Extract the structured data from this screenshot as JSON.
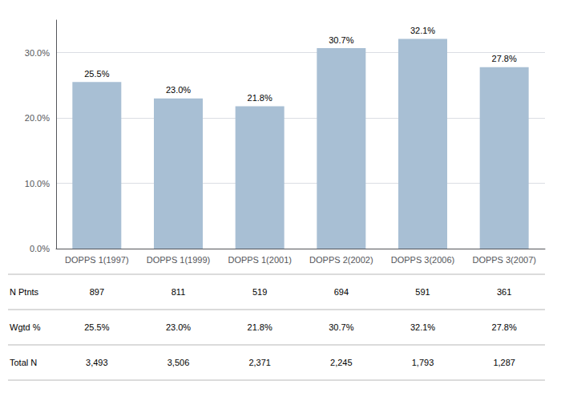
{
  "chart_data": {
    "type": "bar",
    "categories": [
      "DOPPS 1(1997)",
      "DOPPS 1(1999)",
      "DOPPS 1(2001)",
      "DOPPS 2(2002)",
      "DOPPS 3(2006)",
      "DOPPS 3(2007)"
    ],
    "values": [
      25.5,
      23.0,
      21.8,
      30.7,
      32.1,
      27.8
    ],
    "value_labels": [
      "25.5%",
      "23.0%",
      "21.8%",
      "30.7%",
      "32.1%",
      "27.8%"
    ],
    "data_labels": true,
    "color": "#a8bfd4",
    "ylim": [
      0,
      35
    ],
    "yticks": [
      {
        "value": 0,
        "label": "0.0%"
      },
      {
        "value": 10,
        "label": "10.0%"
      },
      {
        "value": 20,
        "label": "20.0%"
      },
      {
        "value": 30,
        "label": "30.0%"
      }
    ],
    "grid": true,
    "table": {
      "row_labels": [
        "N Ptnts",
        "Wgtd %",
        "Total N"
      ],
      "rows": [
        [
          "897",
          "811",
          "519",
          "694",
          "591",
          "361"
        ],
        [
          "25.5%",
          "23.0%",
          "21.8%",
          "30.7%",
          "32.1%",
          "27.8%"
        ],
        [
          "3,493",
          "3,506",
          "2,371",
          "2,245",
          "1,793",
          "1,287"
        ]
      ]
    }
  }
}
